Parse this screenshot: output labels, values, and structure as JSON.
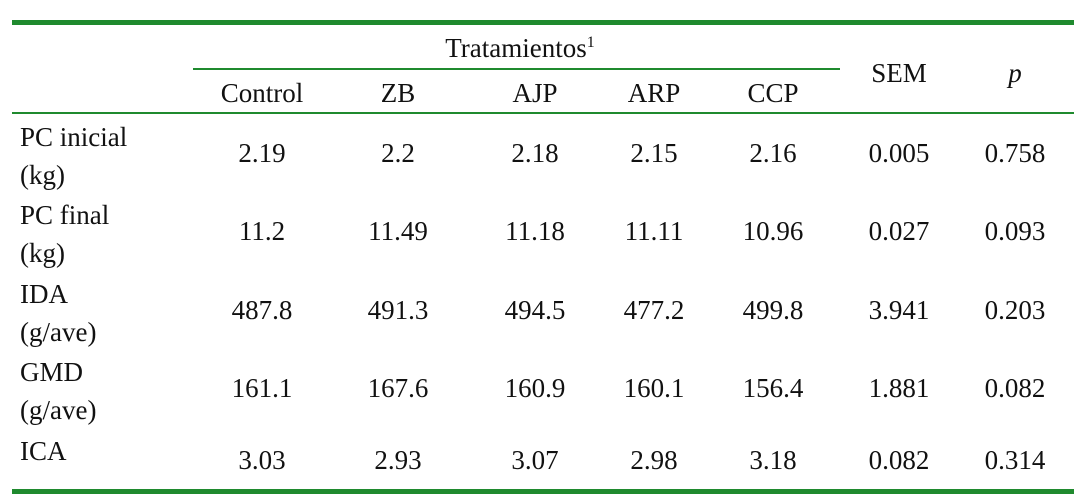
{
  "table": {
    "group_title": "Tratamientos",
    "group_superscript": "1",
    "columns": [
      "Control",
      "ZB",
      "AJP",
      "ARP",
      "CCP"
    ],
    "sem_header": "SEM",
    "p_header": "p",
    "rows": [
      {
        "label_line1": "PC inicial",
        "label_line2": "(kg)",
        "values": [
          "2.19",
          "2.2",
          "2.18",
          "2.15",
          "2.16"
        ],
        "sem": "0.005",
        "p": "0.758"
      },
      {
        "label_line1": "PC final",
        "label_line2": "(kg)",
        "values": [
          "11.2",
          "11.49",
          "11.18",
          "11.11",
          "10.96"
        ],
        "sem": "0.027",
        "p": "0.093"
      },
      {
        "label_line1": "IDA",
        "label_line2": "(g/ave)",
        "values": [
          "487.8",
          "491.3",
          "494.5",
          "477.2",
          "499.8"
        ],
        "sem": "3.941",
        "p": "0.203"
      },
      {
        "label_line1": "GMD",
        "label_line2": "(g/ave)",
        "values": [
          "161.1",
          "167.6",
          "160.9",
          "160.1",
          "156.4"
        ],
        "sem": "1.881",
        "p": "0.082"
      },
      {
        "label_line1": "ICA",
        "label_line2": "",
        "values": [
          "3.03",
          "2.93",
          "3.07",
          "2.98",
          "3.18"
        ],
        "sem": "0.082",
        "p": "0.314"
      }
    ],
    "rule_color": "#1f8a2e"
  }
}
